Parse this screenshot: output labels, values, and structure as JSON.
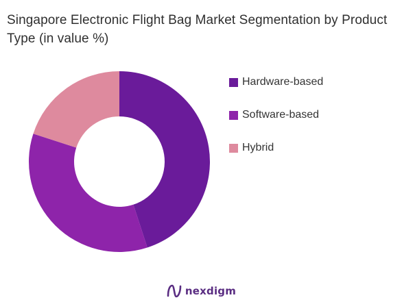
{
  "header": {
    "title": "Singapore Electronic Flight Bag Market Segmentation by Product Type (in value %)"
  },
  "chart_data": {
    "type": "pie",
    "style": "donut",
    "categories": [
      "Hardware-based",
      "Software-based",
      "Hybrid"
    ],
    "values": [
      45,
      35,
      20
    ],
    "colors": [
      "#6a1b9a",
      "#8e24aa",
      "#de8a9e"
    ],
    "legend_position": "right"
  },
  "legend": {
    "items": [
      {
        "label": "Hardware-based",
        "color": "#6a1b9a"
      },
      {
        "label": "Software-based",
        "color": "#8e24aa"
      },
      {
        "label": "Hybrid",
        "color": "#de8a9e"
      }
    ]
  },
  "brand": {
    "name": "nexdigm",
    "icon": "nexdigm-logo-icon",
    "color": "#5a2d82"
  }
}
